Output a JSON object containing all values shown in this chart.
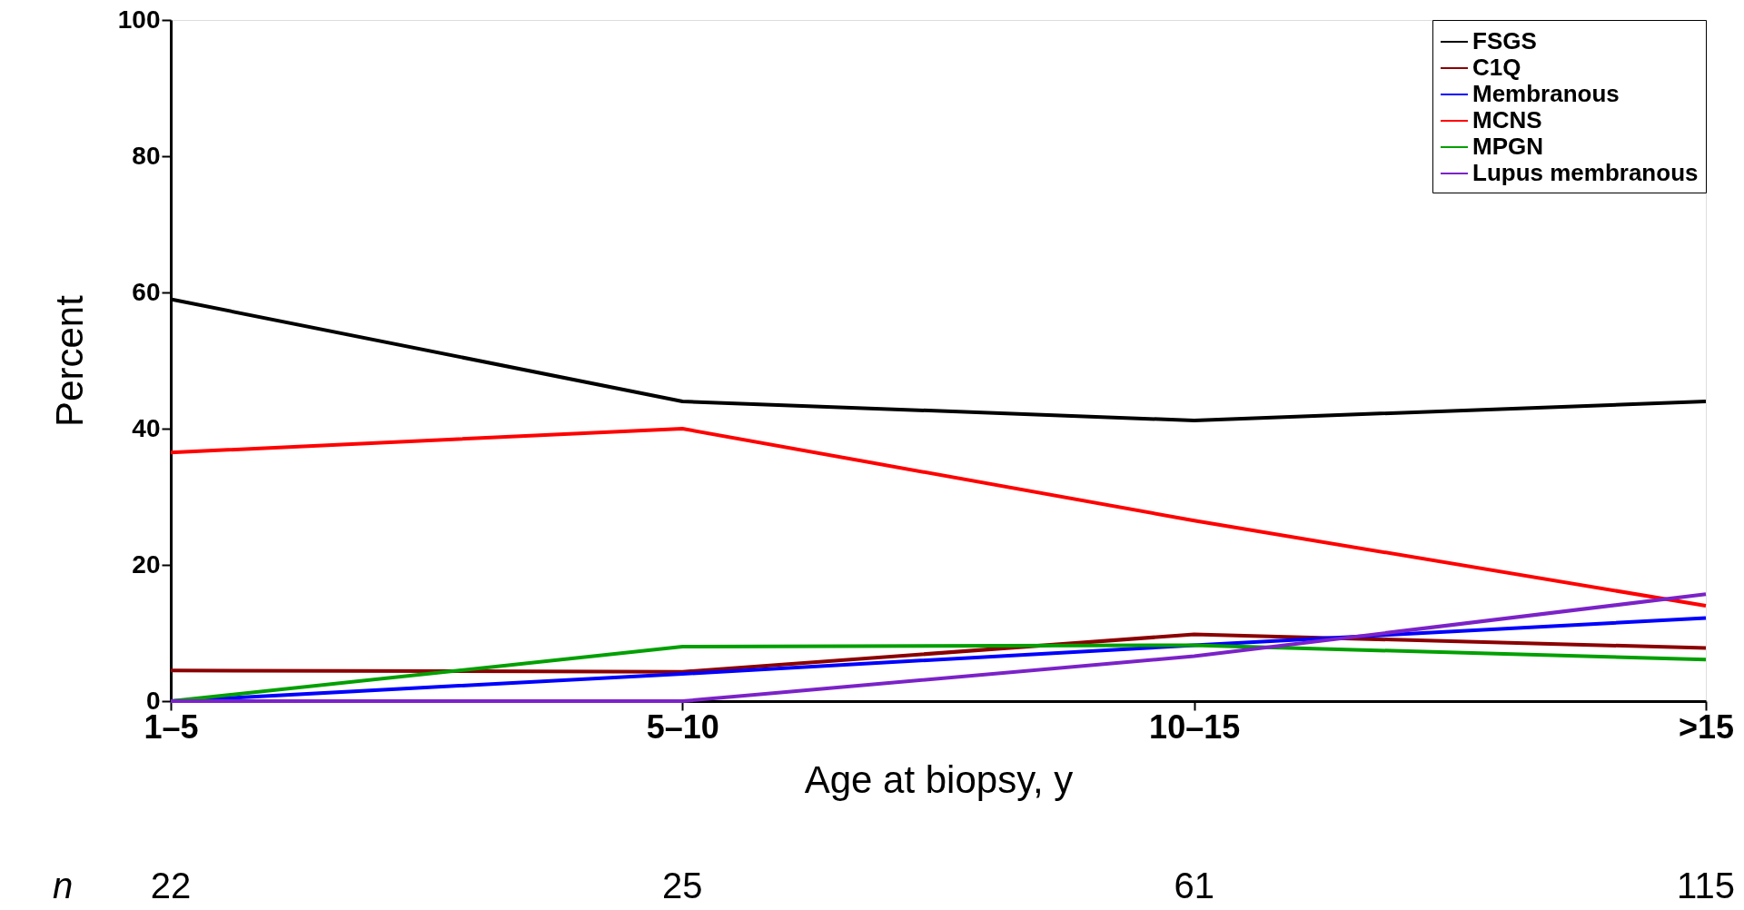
{
  "chart_data": {
    "type": "line",
    "xlabel": "Age at biopsy, y",
    "ylabel": "Percent",
    "categories": [
      "1–5",
      "5–10",
      "10–15",
      ">15"
    ],
    "ylim": [
      0,
      100
    ],
    "yticks": [
      0,
      20,
      40,
      60,
      80,
      100
    ],
    "grid": false,
    "legend": "top right",
    "marker": "none",
    "line_style": "solid",
    "series": [
      {
        "name": "FSGS",
        "color": "#000000",
        "values": [
          59,
          44,
          41.2,
          44
        ]
      },
      {
        "name": "C1Q",
        "color": "#8b0000",
        "values": [
          4.5,
          4.3,
          9.8,
          7.8
        ]
      },
      {
        "name": "Membranous",
        "color": "#0000ff",
        "values": [
          0,
          4,
          8.2,
          12.2
        ]
      },
      {
        "name": "MCNS",
        "color": "#ff0000",
        "values": [
          36.5,
          40,
          26.5,
          14
        ]
      },
      {
        "name": "MPGN",
        "color": "#00a000",
        "values": [
          0,
          8,
          8.2,
          6.1
        ]
      },
      {
        "name": "Lupus membranous",
        "color": "#7b22c8",
        "values": [
          0,
          0,
          6.6,
          15.7
        ]
      }
    ],
    "annotations": [
      "n",
      "22",
      "25",
      "61",
      "115"
    ]
  }
}
